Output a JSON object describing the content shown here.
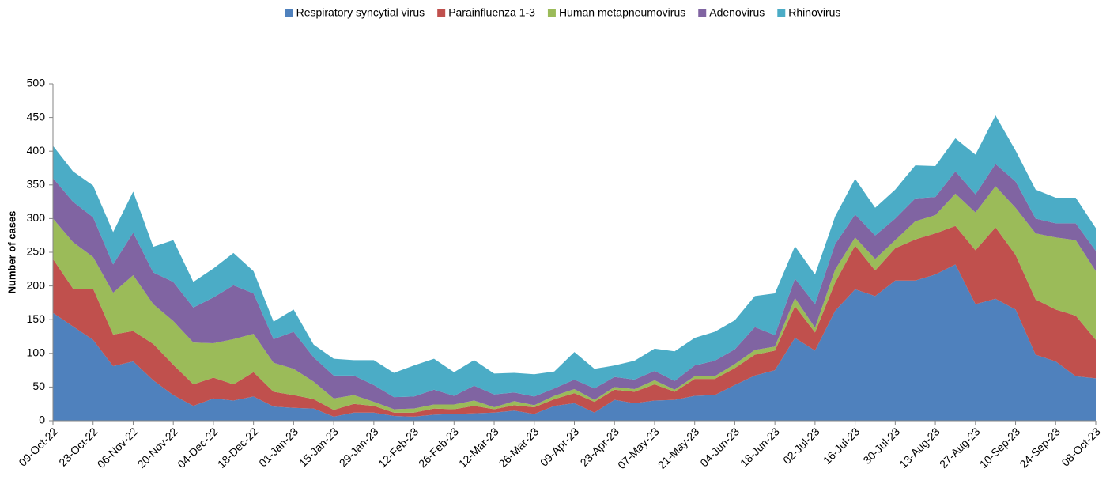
{
  "chart_data": {
    "type": "stacked_area",
    "y_label": "Number of cases",
    "categories": [
      "09-Oct-22",
      null,
      "23-Oct-22",
      null,
      "06-Nov-22",
      null,
      "20-Nov-22",
      null,
      "04-Dec-22",
      null,
      "18-Dec-22",
      null,
      "01-Jan-23",
      null,
      "15-Jan-23",
      null,
      "29-Jan-23",
      null,
      "12-Feb-23",
      null,
      "26-Feb-23",
      null,
      "12-Mar-23",
      null,
      "26-Mar-23",
      null,
      "09-Apr-23",
      null,
      "23-Apr-23",
      null,
      "07-May-23",
      null,
      "21-May-23",
      null,
      "04-Jun-23",
      null,
      "18-Jun-23",
      null,
      "02-Jul-23",
      null,
      "16-Jul-23",
      null,
      "30-Jul-23",
      null,
      "13-Aug-23",
      null,
      "27-Aug-23",
      null,
      "10-Sep-23",
      null,
      "24-Sep-23",
      null,
      "08-Oct-23"
    ],
    "series": [
      {
        "name": "Respiratory syncytial virus",
        "color": "#4f81bd",
        "values": [
          160,
          140,
          120,
          81,
          88,
          60,
          38,
          22,
          33,
          30,
          36,
          21,
          19,
          18,
          6,
          12,
          12,
          7,
          6,
          9,
          10,
          11,
          12,
          15,
          10,
          22,
          26,
          12,
          31,
          26,
          30,
          31,
          37,
          38,
          53,
          67,
          75,
          123,
          104,
          163,
          195,
          185,
          208,
          208,
          217,
          232,
          173,
          181,
          165,
          98,
          88,
          66,
          63
        ]
      },
      {
        "name": "Parainfluenza 1-3",
        "color": "#c0504d",
        "values": [
          80,
          56,
          76,
          47,
          45,
          54,
          45,
          32,
          31,
          24,
          36,
          22,
          19,
          14,
          10,
          13,
          10,
          5,
          6,
          9,
          7,
          11,
          5,
          8,
          10,
          10,
          15,
          16,
          15,
          17,
          24,
          12,
          25,
          24,
          25,
          31,
          29,
          47,
          27,
          42,
          65,
          38,
          48,
          61,
          61,
          57,
          80,
          106,
          81,
          82,
          77,
          90,
          57
        ]
      },
      {
        "name": "Human metapneumovirus",
        "color": "#9bbb59",
        "values": [
          60,
          69,
          47,
          62,
          83,
          59,
          65,
          62,
          51,
          67,
          57,
          43,
          39,
          26,
          17,
          13,
          6,
          5,
          6,
          6,
          7,
          8,
          3,
          6,
          3,
          5,
          6,
          3,
          4,
          4,
          6,
          3,
          4,
          4,
          6,
          7,
          6,
          12,
          7,
          19,
          12,
          17,
          12,
          27,
          27,
          48,
          56,
          61,
          70,
          98,
          107,
          112,
          102
        ]
      },
      {
        "name": "Adenovirus",
        "color": "#8064a2",
        "values": [
          60,
          60,
          59,
          42,
          63,
          47,
          58,
          52,
          68,
          80,
          60,
          35,
          55,
          36,
          34,
          29,
          25,
          18,
          18,
          22,
          13,
          22,
          19,
          13,
          13,
          11,
          14,
          17,
          15,
          14,
          14,
          13,
          16,
          23,
          22,
          34,
          17,
          29,
          35,
          38,
          34,
          35,
          32,
          34,
          27,
          33,
          27,
          33,
          39,
          22,
          21,
          25,
          30
        ]
      },
      {
        "name": "Rhinovirus",
        "color": "#4bacc6",
        "values": [
          48,
          45,
          47,
          48,
          61,
          38,
          62,
          38,
          43,
          48,
          33,
          26,
          33,
          19,
          25,
          23,
          37,
          36,
          46,
          46,
          35,
          38,
          31,
          29,
          33,
          25,
          41,
          29,
          17,
          28,
          33,
          44,
          41,
          43,
          43,
          46,
          62,
          48,
          44,
          41,
          53,
          41,
          43,
          49,
          46,
          49,
          59,
          72,
          46,
          43,
          38,
          38,
          34
        ]
      }
    ],
    "ylim": [
      0,
      500
    ],
    "yticks": [
      0,
      50,
      100,
      150,
      200,
      250,
      300,
      350,
      400,
      450,
      500
    ],
    "legend": "top"
  }
}
